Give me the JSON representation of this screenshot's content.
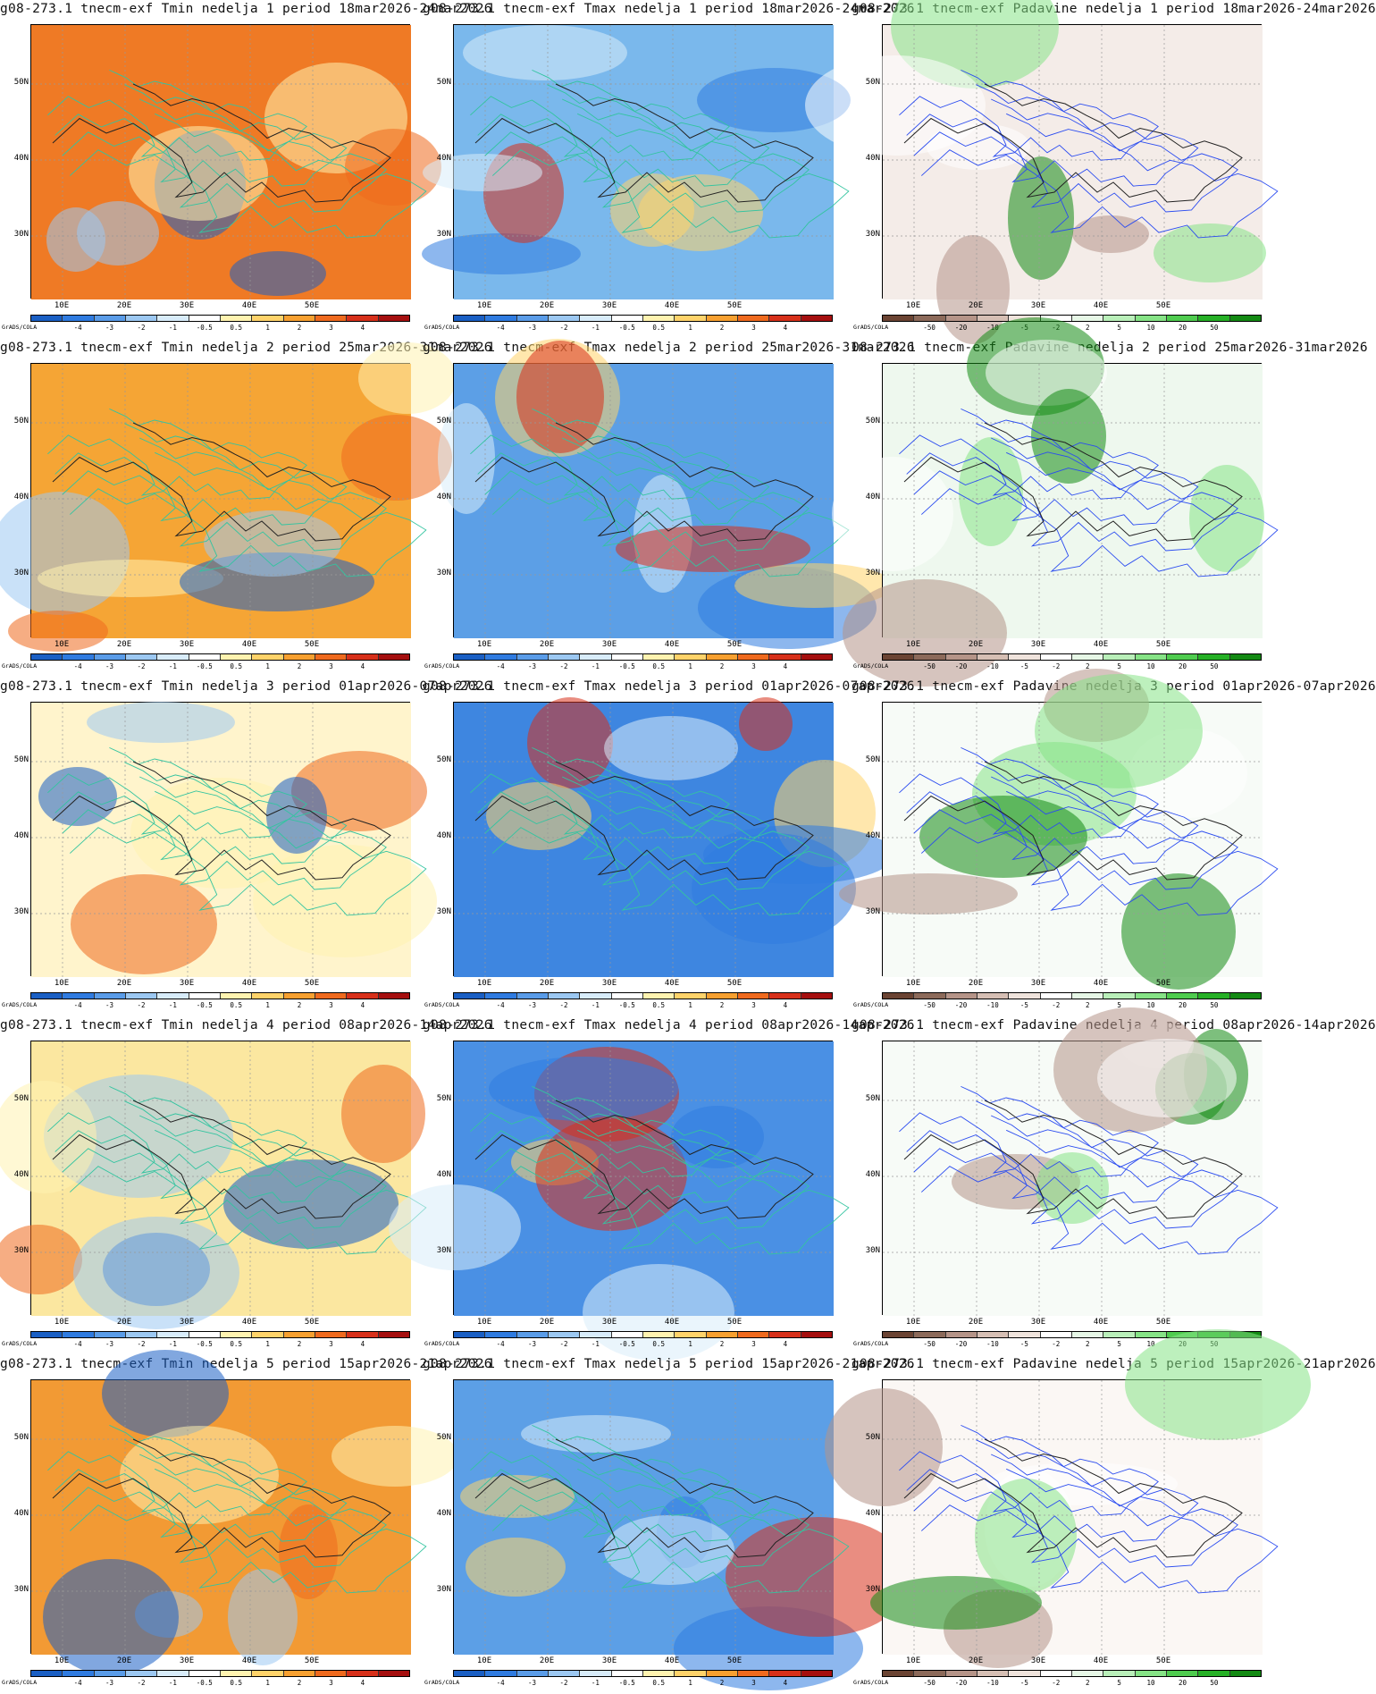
{
  "credit": "GrADS/COLA",
  "lat_labels": [
    "50N",
    "40N",
    "30N"
  ],
  "lon_labels": [
    "10E",
    "20E",
    "30E",
    "40E",
    "50E"
  ],
  "colorbars": {
    "temp": {
      "colors": [
        "#1a5fc4",
        "#2f7be0",
        "#5a9ce8",
        "#9cc8f2",
        "#d8ecfa",
        "#ffffff",
        "#fff3b0",
        "#ffd36a",
        "#f7a030",
        "#ef6a1e",
        "#d7301a",
        "#a50f0f"
      ],
      "labels": [
        "-4",
        "-3",
        "-2",
        "-1",
        "-0.5",
        "0.5",
        "1",
        "2",
        "3",
        "4"
      ]
    },
    "precip": {
      "colors": [
        "#6b4433",
        "#8c6a5a",
        "#b59488",
        "#d6bfb4",
        "#efe3dc",
        "#ffffff",
        "#e6f7e6",
        "#b9efb9",
        "#86e386",
        "#4fcc4f",
        "#26b026",
        "#138a13"
      ],
      "labels": [
        "-50",
        "-20",
        "-10",
        "-5",
        "-2",
        "2",
        "5",
        "10",
        "20",
        "50"
      ]
    }
  },
  "panels": [
    {
      "title": "g08-273.1 tnecm-exf Tmin nedelja 1 period 18mar2026-24mar2026",
      "kind": "temp",
      "bg": "#ef7a25",
      "contour": "#33c4a0"
    },
    {
      "title": "g08-273.1 tnecm-exf Tmax nedelja 1 period 18mar2026-24mar2026",
      "kind": "temp",
      "bg": "#7ab8ec",
      "contour": "#33c4a0"
    },
    {
      "title": "g08-273.1 tnecm-exf Padavine nedelja 1 period 18mar2026-24mar2026",
      "kind": "precip",
      "bg": "#f4ece8",
      "contour": "#2b4cf0"
    },
    {
      "title": "g08-273.1 tnecm-exf Tmin nedelja 2 period 25mar2026-31mar2026",
      "kind": "temp",
      "bg": "#f5a535",
      "contour": "#33c4a0"
    },
    {
      "title": "g08-273.1 tnecm-exf Tmax nedelja 2 period 25mar2026-31mar2026",
      "kind": "temp",
      "bg": "#5c9fe6",
      "contour": "#33c4a0"
    },
    {
      "title": "08-273.1 tnecm-exf Padavine nedelja 2 period 25mar2026-31mar2026",
      "kind": "precip",
      "bg": "#eef8ee",
      "contour": "#2b4cf0"
    },
    {
      "title": "g08-273.1 tnecm-exf Tmin nedelja 3 period 01apr2026-07apr2026",
      "kind": "temp",
      "bg": "#fff4cc",
      "contour": "#33c4a0"
    },
    {
      "title": "g08-273.1 tnecm-exf Tmax nedelja 3 period 01apr2026-07apr2026",
      "kind": "temp",
      "bg": "#3e86e0",
      "contour": "#33c4a0"
    },
    {
      "title": "g08-273.1 tnecm-exf Padavine nedelja 3 period 01apr2026-07apr2026",
      "kind": "precip",
      "bg": "#f7fbf7",
      "contour": "#2b4cf0"
    },
    {
      "title": "g08-273.1 tnecm-exf Tmin nedelja 4 period 08apr2026-14apr2026",
      "kind": "temp",
      "bg": "#fbe7a0",
      "contour": "#33c4a0"
    },
    {
      "title": "g08-273.1 tnecm-exf Tmax nedelja 4 period 08apr2026-14apr2026",
      "kind": "temp",
      "bg": "#4a90e4",
      "contour": "#33c4a0"
    },
    {
      "title": "g08-273.1 tnecm-exf Padavine nedelja 4 period 08apr2026-14apr2026",
      "kind": "precip",
      "bg": "#f7fbf7",
      "contour": "#2b4cf0"
    },
    {
      "title": "g08-273.1 tnecm-exf Tmin nedelja 5 period 15apr2026-21apr2026",
      "kind": "temp",
      "bg": "#f29a34",
      "contour": "#33c4a0"
    },
    {
      "title": "g08-273.1 tnecm-exf Tmax nedelja 5 period 15apr2026-21apr2026",
      "kind": "temp",
      "bg": "#5c9fe6",
      "contour": "#33c4a0"
    },
    {
      "title": "g08-273.1 tnecm-exf Padavine nedelja 5 period 15apr2026-21apr2026",
      "kind": "precip",
      "bg": "#fbf7f4",
      "contour": "#2b4cf0"
    }
  ]
}
